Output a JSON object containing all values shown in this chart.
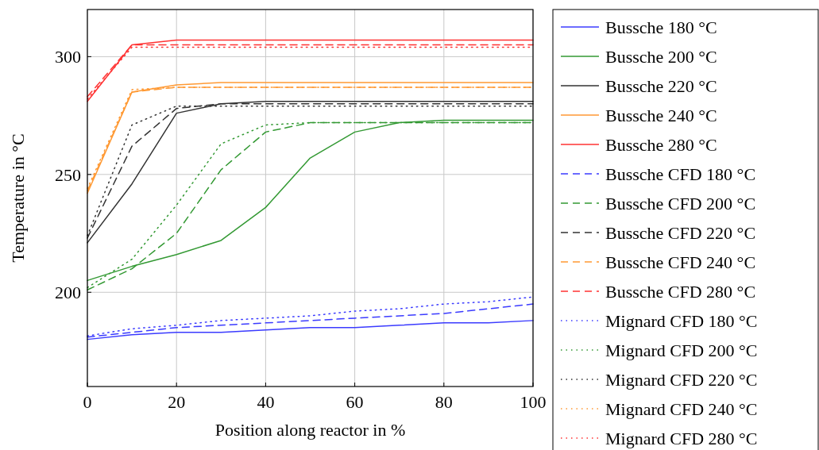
{
  "chart_data": {
    "type": "line",
    "xlabel": "Position along reactor in %",
    "ylabel": "Temperature in °C",
    "x": [
      0,
      10,
      20,
      30,
      40,
      50,
      60,
      70,
      80,
      90,
      100
    ],
    "xlim": [
      0,
      100
    ],
    "xticks": [
      0,
      20,
      40,
      60,
      80,
      100
    ],
    "ylim": [
      160,
      320
    ],
    "yticks": [
      200,
      250,
      300
    ],
    "grid": true,
    "legend": "right",
    "marker": "none",
    "series": [
      {
        "name": "Bussche 180 °C",
        "color": "#3b3bff",
        "line_style": "solid",
        "values": [
          180,
          182,
          183,
          183,
          184,
          185,
          185,
          186,
          187,
          187,
          188
        ]
      },
      {
        "name": "Bussche 200 °C",
        "color": "#339933",
        "line_style": "solid",
        "values": [
          205,
          211,
          216,
          222,
          236,
          257,
          268,
          272,
          273,
          273,
          273
        ]
      },
      {
        "name": "Bussche 220 °C",
        "color": "#333333",
        "line_style": "solid",
        "values": [
          221,
          246,
          276,
          280,
          281,
          281,
          281,
          281,
          281,
          281,
          281
        ]
      },
      {
        "name": "Bussche 240 °C",
        "color": "#ff9933",
        "line_style": "solid",
        "values": [
          242,
          285,
          288,
          289,
          289,
          289,
          289,
          289,
          289,
          289,
          289
        ]
      },
      {
        "name": "Bussche 280 °C",
        "color": "#ff3333",
        "line_style": "solid",
        "values": [
          281,
          305,
          307,
          307,
          307,
          307,
          307,
          307,
          307,
          307,
          307
        ]
      },
      {
        "name": "Bussche CFD 180 °C",
        "color": "#3b3bff",
        "line_style": "dashed",
        "values": [
          181,
          183,
          185,
          186,
          187,
          188,
          189,
          190,
          191,
          193,
          195
        ]
      },
      {
        "name": "Bussche CFD 200 °C",
        "color": "#339933",
        "line_style": "dashed",
        "values": [
          201,
          210,
          225,
          252,
          268,
          272,
          272,
          272,
          272,
          272,
          272
        ]
      },
      {
        "name": "Bussche CFD 220 °C",
        "color": "#333333",
        "line_style": "dashed",
        "values": [
          223,
          262,
          278,
          280,
          280,
          280,
          280,
          280,
          280,
          280,
          280
        ]
      },
      {
        "name": "Bussche CFD 240 °C",
        "color": "#ff9933",
        "line_style": "dashed",
        "values": [
          243,
          285,
          287,
          287,
          287,
          287,
          287,
          287,
          287,
          287,
          287
        ]
      },
      {
        "name": "Bussche CFD 280 °C",
        "color": "#ff3333",
        "line_style": "dashed",
        "values": [
          283,
          305,
          305,
          305,
          305,
          305,
          305,
          305,
          305,
          305,
          305
        ]
      },
      {
        "name": "Mignard CFD 180 °C",
        "color": "#3b3bff",
        "line_style": "dotted",
        "values": [
          181.5,
          184.5,
          186,
          188,
          189,
          190,
          192,
          193,
          195,
          196,
          198
        ]
      },
      {
        "name": "Mignard CFD 200 °C",
        "color": "#339933",
        "line_style": "dotted",
        "values": [
          202,
          214,
          237,
          263,
          271,
          272,
          272,
          272,
          272,
          272,
          272
        ]
      },
      {
        "name": "Mignard CFD 220 °C",
        "color": "#333333",
        "line_style": "dotted",
        "values": [
          224,
          271,
          279,
          279,
          279,
          279,
          279,
          279,
          279,
          279,
          279
        ]
      },
      {
        "name": "Mignard CFD 240 °C",
        "color": "#ff9933",
        "line_style": "dotted",
        "values": [
          244,
          286,
          287,
          287,
          287,
          287,
          287,
          287,
          287,
          287,
          287
        ]
      },
      {
        "name": "Mignard CFD 280 °C",
        "color": "#ff3333",
        "line_style": "dotted",
        "values": [
          282,
          304,
          304,
          304,
          304,
          304,
          304,
          304,
          304,
          304,
          304
        ]
      }
    ]
  }
}
